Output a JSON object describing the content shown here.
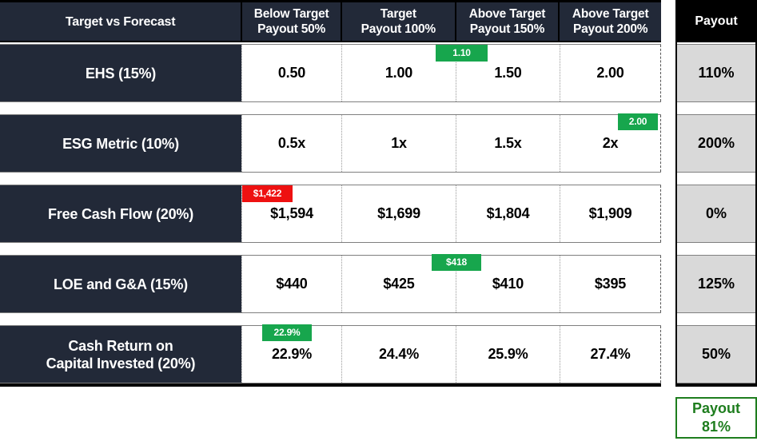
{
  "colors": {
    "header_dark": "#222938",
    "header_black": "#000000",
    "payout_cell_gray": "#d9d9d9",
    "badge_green": "#17a64d",
    "badge_red": "#ee1111",
    "result_green": "#1e7d1e"
  },
  "header": {
    "first_col": "Target vs Forecast",
    "columns": [
      {
        "line1": "Below Target",
        "line2": "Payout 50%"
      },
      {
        "line1": "Target",
        "line2": "Payout 100%"
      },
      {
        "line1": "Above Target",
        "line2": "Payout 150%"
      },
      {
        "line1": "Above Target",
        "line2": "Payout 200%"
      }
    ],
    "payout_col": "Payout"
  },
  "rows": [
    {
      "label": "EHS (15%)",
      "values": [
        "0.50",
        "1.00",
        "1.50",
        "2.00"
      ],
      "payout": "110%",
      "badge": {
        "text": "1.10",
        "color": "#17a64d"
      }
    },
    {
      "label": "ESG Metric (10%)",
      "values": [
        "0.5x",
        "1x",
        "1.5x",
        "2x"
      ],
      "payout": "200%",
      "badge": {
        "text": "2.00",
        "color": "#17a64d"
      }
    },
    {
      "label": "Free Cash Flow (20%)",
      "values": [
        "$1,594",
        "$1,699",
        "$1,804",
        "$1,909"
      ],
      "payout": "0%",
      "badge": {
        "text": "$1,422",
        "color": "#ee1111"
      }
    },
    {
      "label": "LOE and G&A (15%)",
      "values": [
        "$440",
        "$425",
        "$410",
        "$395"
      ],
      "payout": "125%",
      "badge": {
        "text": "$418",
        "color": "#17a64d"
      }
    },
    {
      "label": "Cash Return on\nCapital Invested (20%)",
      "values": [
        "22.9%",
        "24.4%",
        "25.9%",
        "27.4%"
      ],
      "payout": "50%",
      "badge": {
        "text": "22.9%",
        "color": "#17a64d"
      }
    }
  ],
  "result": {
    "label": "Payout",
    "value": "81%"
  },
  "chart_data": {
    "type": "table",
    "title": "Target vs Forecast",
    "columns": [
      "Target vs Forecast",
      "Below Target Payout 50%",
      "Target Payout 100%",
      "Above Target Payout 150%",
      "Above Target Payout 200%",
      "Payout"
    ],
    "rows": [
      {
        "metric": "EHS (15%)",
        "below_target": "0.50",
        "target": "1.00",
        "above_target_150": "1.50",
        "above_target_200": "2.00",
        "forecast_marker": "1.10",
        "forecast_status": "green",
        "payout": "110%"
      },
      {
        "metric": "ESG Metric (10%)",
        "below_target": "0.5x",
        "target": "1x",
        "above_target_150": "1.5x",
        "above_target_200": "2x",
        "forecast_marker": "2.00",
        "forecast_status": "green",
        "payout": "200%"
      },
      {
        "metric": "Free Cash Flow (20%)",
        "below_target": "$1,594",
        "target": "$1,699",
        "above_target_150": "$1,804",
        "above_target_200": "$1,909",
        "forecast_marker": "$1,422",
        "forecast_status": "red",
        "payout": "0%"
      },
      {
        "metric": "LOE and G&A (15%)",
        "below_target": "$440",
        "target": "$425",
        "above_target_150": "$410",
        "above_target_200": "$395",
        "forecast_marker": "$418",
        "forecast_status": "green",
        "payout": "125%"
      },
      {
        "metric": "Cash Return on Capital Invested (20%)",
        "below_target": "22.9%",
        "target": "24.4%",
        "above_target_150": "25.9%",
        "above_target_200": "27.4%",
        "forecast_marker": "22.9%",
        "forecast_status": "green",
        "payout": "50%"
      }
    ],
    "total_payout": "81%",
    "legend_position": "none",
    "grid": "dotted-column-separators"
  }
}
